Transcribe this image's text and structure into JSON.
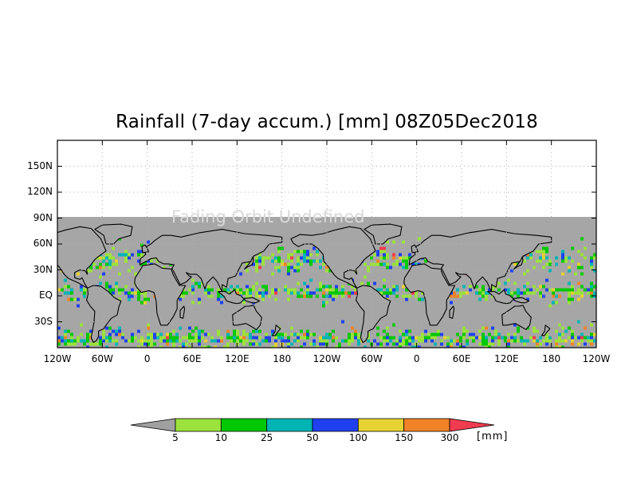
{
  "title": "Rainfall (7-day accum.) [mm] 08Z05Dec2018",
  "faint_text": "Fading Orbit Undefined",
  "y_axis": {
    "tick_labels": [
      "150N",
      "120N",
      "90N",
      "60N",
      "30N",
      "EQ",
      "30S"
    ]
  },
  "x_axis": {
    "tick_labels": [
      "120W",
      "60W",
      "0",
      "60E",
      "120E",
      "180",
      "120W",
      "60W",
      "0",
      "60E",
      "120E",
      "180",
      "120W"
    ]
  },
  "map": {
    "extent_lat": [
      -60,
      180
    ],
    "data_lat": [
      -60,
      90
    ],
    "lon_span_degrees": 720,
    "nodata_color": "#a6a6a6",
    "grid": "dotted"
  },
  "colorbar": {
    "levels": [
      "5",
      "10",
      "25",
      "50",
      "100",
      "150",
      "300"
    ],
    "colors": [
      "#9be23c",
      "#00c800",
      "#00b4b4",
      "#2040f0",
      "#e6d232",
      "#f08228",
      "#f03c50"
    ],
    "under_color": "#a0a0a0",
    "units": "[mm]"
  }
}
